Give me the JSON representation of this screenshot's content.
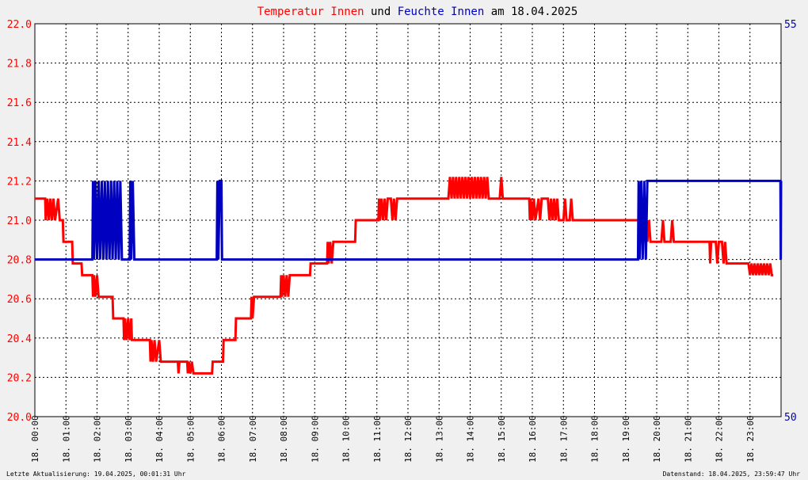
{
  "title": {
    "part1": "Temperatur Innen",
    "part2": " und ",
    "part3": "Feuchte Innen",
    "part4": " am 18.04.2025",
    "color1": "#ff0000",
    "color2": "#000000",
    "color3": "#0000c0"
  },
  "footer": {
    "left": "Letzte Aktualisierung: 19.04.2025, 00:01:31 Uhr",
    "right": "Datenstand: 18.04.2025, 23:59:47 Uhr"
  },
  "chart_data": {
    "type": "line",
    "title": "Temperatur Innen und Feuchte Innen am 18.04.2025",
    "x_range": [
      0,
      24
    ],
    "x_tick_labels": [
      "18. 00:00",
      "18. 01:00",
      "18. 02:00",
      "18. 03:00",
      "18. 04:00",
      "18. 05:00",
      "18. 06:00",
      "18. 07:00",
      "18. 08:00",
      "18. 09:00",
      "18. 10:00",
      "18. 11:00",
      "18. 12:00",
      "18. 13:00",
      "18. 14:00",
      "18. 15:00",
      "18. 16:00",
      "18. 17:00",
      "18. 18:00",
      "18. 19:00",
      "18. 20:00",
      "18. 21:00",
      "18. 22:00",
      "18. 23:00"
    ],
    "y_left": {
      "range": [
        20.0,
        22.0
      ],
      "ticks": [
        "20.0",
        "20.2",
        "20.4",
        "20.6",
        "20.8",
        "21.0",
        "21.2",
        "21.4",
        "21.6",
        "21.8",
        "22.0"
      ],
      "color": "#ff0000"
    },
    "y_right": {
      "range": [
        50,
        55
      ],
      "ticks": [
        "50",
        "55"
      ],
      "color": "#0000c0"
    },
    "grid": true,
    "series": [
      {
        "name": "Temperatur Innen",
        "axis": "left",
        "color": "#ff0000",
        "points": [
          [
            0.0,
            21.11
          ],
          [
            0.33,
            21.11
          ],
          [
            0.35,
            21.0
          ],
          [
            0.4,
            21.11
          ],
          [
            0.45,
            21.0
          ],
          [
            0.5,
            21.11
          ],
          [
            0.55,
            21.0
          ],
          [
            0.6,
            21.11
          ],
          [
            0.65,
            21.0
          ],
          [
            0.75,
            21.11
          ],
          [
            0.8,
            21.0
          ],
          [
            0.9,
            21.0
          ],
          [
            0.92,
            20.89
          ],
          [
            1.2,
            20.89
          ],
          [
            1.22,
            20.78
          ],
          [
            1.5,
            20.78
          ],
          [
            1.52,
            20.72
          ],
          [
            1.85,
            20.72
          ],
          [
            1.87,
            20.61
          ],
          [
            1.9,
            20.72
          ],
          [
            1.95,
            20.61
          ],
          [
            2.0,
            20.72
          ],
          [
            2.05,
            20.61
          ],
          [
            2.1,
            20.61
          ],
          [
            2.12,
            20.61
          ],
          [
            2.5,
            20.61
          ],
          [
            2.52,
            20.5
          ],
          [
            2.85,
            20.5
          ],
          [
            2.87,
            20.39
          ],
          [
            2.9,
            20.5
          ],
          [
            2.95,
            20.39
          ],
          [
            3.0,
            20.5
          ],
          [
            3.05,
            20.39
          ],
          [
            3.1,
            20.5
          ],
          [
            3.12,
            20.39
          ],
          [
            3.7,
            20.39
          ],
          [
            3.72,
            20.28
          ],
          [
            3.75,
            20.39
          ],
          [
            3.8,
            20.28
          ],
          [
            3.85,
            20.39
          ],
          [
            3.9,
            20.28
          ],
          [
            4.0,
            20.39
          ],
          [
            4.05,
            20.28
          ],
          [
            4.1,
            20.28
          ],
          [
            4.6,
            20.28
          ],
          [
            4.62,
            20.22
          ],
          [
            4.65,
            20.28
          ],
          [
            4.9,
            20.28
          ],
          [
            4.92,
            20.22
          ],
          [
            4.95,
            20.28
          ],
          [
            5.0,
            20.22
          ],
          [
            5.05,
            20.28
          ],
          [
            5.1,
            20.22
          ],
          [
            5.7,
            20.22
          ],
          [
            5.72,
            20.28
          ],
          [
            6.05,
            20.28
          ],
          [
            6.07,
            20.39
          ],
          [
            6.45,
            20.39
          ],
          [
            6.47,
            20.5
          ],
          [
            6.95,
            20.5
          ],
          [
            6.97,
            20.61
          ],
          [
            7.0,
            20.5
          ],
          [
            7.05,
            20.61
          ],
          [
            7.9,
            20.61
          ],
          [
            7.92,
            20.72
          ],
          [
            7.95,
            20.61
          ],
          [
            8.0,
            20.72
          ],
          [
            8.05,
            20.61
          ],
          [
            8.1,
            20.72
          ],
          [
            8.15,
            20.61
          ],
          [
            8.2,
            20.72
          ],
          [
            8.85,
            20.72
          ],
          [
            8.87,
            20.78
          ],
          [
            9.4,
            20.78
          ],
          [
            9.42,
            20.89
          ],
          [
            9.45,
            20.78
          ],
          [
            9.5,
            20.89
          ],
          [
            9.55,
            20.78
          ],
          [
            9.6,
            20.89
          ],
          [
            10.3,
            20.89
          ],
          [
            10.32,
            21.0
          ],
          [
            11.05,
            21.0
          ],
          [
            11.07,
            21.11
          ],
          [
            11.1,
            21.0
          ],
          [
            11.15,
            21.11
          ],
          [
            11.2,
            21.0
          ],
          [
            11.25,
            21.11
          ],
          [
            11.3,
            21.0
          ],
          [
            11.35,
            21.11
          ],
          [
            11.45,
            21.11
          ],
          [
            11.5,
            21.0
          ],
          [
            11.55,
            21.11
          ],
          [
            11.6,
            21.0
          ],
          [
            11.65,
            21.11
          ],
          [
            11.7,
            21.11
          ],
          [
            13.3,
            21.11
          ],
          [
            13.35,
            21.22
          ],
          [
            13.4,
            21.11
          ],
          [
            13.45,
            21.22
          ],
          [
            13.5,
            21.11
          ],
          [
            13.55,
            21.22
          ],
          [
            13.6,
            21.11
          ],
          [
            13.65,
            21.22
          ],
          [
            13.7,
            21.11
          ],
          [
            13.75,
            21.22
          ],
          [
            13.8,
            21.11
          ],
          [
            13.85,
            21.22
          ],
          [
            13.9,
            21.11
          ],
          [
            13.95,
            21.22
          ],
          [
            14.0,
            21.11
          ],
          [
            14.05,
            21.22
          ],
          [
            14.1,
            21.11
          ],
          [
            14.15,
            21.22
          ],
          [
            14.2,
            21.11
          ],
          [
            14.25,
            21.22
          ],
          [
            14.3,
            21.11
          ],
          [
            14.35,
            21.22
          ],
          [
            14.4,
            21.11
          ],
          [
            14.45,
            21.22
          ],
          [
            14.5,
            21.11
          ],
          [
            14.55,
            21.22
          ],
          [
            14.6,
            21.11
          ],
          [
            14.95,
            21.11
          ],
          [
            15.0,
            21.22
          ],
          [
            15.05,
            21.11
          ],
          [
            15.9,
            21.11
          ],
          [
            15.92,
            21.0
          ],
          [
            15.95,
            21.11
          ],
          [
            16.0,
            21.0
          ],
          [
            16.05,
            21.11
          ],
          [
            16.1,
            21.0
          ],
          [
            16.2,
            21.11
          ],
          [
            16.25,
            21.0
          ],
          [
            16.3,
            21.11
          ],
          [
            16.5,
            21.11
          ],
          [
            16.55,
            21.0
          ],
          [
            16.6,
            21.11
          ],
          [
            16.65,
            21.0
          ],
          [
            16.7,
            21.11
          ],
          [
            16.75,
            21.0
          ],
          [
            16.8,
            21.11
          ],
          [
            16.85,
            21.0
          ],
          [
            17.0,
            21.0
          ],
          [
            17.05,
            21.11
          ],
          [
            17.1,
            21.0
          ],
          [
            17.2,
            21.0
          ],
          [
            17.25,
            21.11
          ],
          [
            17.3,
            21.0
          ],
          [
            19.6,
            21.0
          ],
          [
            19.62,
            20.89
          ],
          [
            19.65,
            21.0
          ],
          [
            19.7,
            20.89
          ],
          [
            19.75,
            21.0
          ],
          [
            19.8,
            20.89
          ],
          [
            19.85,
            20.89
          ],
          [
            20.15,
            20.89
          ],
          [
            20.2,
            21.0
          ],
          [
            20.25,
            20.89
          ],
          [
            20.45,
            20.89
          ],
          [
            20.5,
            21.0
          ],
          [
            20.55,
            20.89
          ],
          [
            21.7,
            20.89
          ],
          [
            21.72,
            20.78
          ],
          [
            21.75,
            20.89
          ],
          [
            21.8,
            20.89
          ],
          [
            21.9,
            20.89
          ],
          [
            21.95,
            20.78
          ],
          [
            22.0,
            20.89
          ],
          [
            22.1,
            20.89
          ],
          [
            22.15,
            20.78
          ],
          [
            22.2,
            20.89
          ],
          [
            22.25,
            20.78
          ],
          [
            22.3,
            20.78
          ],
          [
            22.95,
            20.78
          ],
          [
            23.0,
            20.72
          ],
          [
            23.05,
            20.78
          ],
          [
            23.1,
            20.72
          ],
          [
            23.15,
            20.78
          ],
          [
            23.2,
            20.72
          ],
          [
            23.25,
            20.78
          ],
          [
            23.3,
            20.72
          ],
          [
            23.35,
            20.78
          ],
          [
            23.4,
            20.72
          ],
          [
            23.45,
            20.78
          ],
          [
            23.5,
            20.72
          ],
          [
            23.55,
            20.78
          ],
          [
            23.6,
            20.72
          ],
          [
            23.65,
            20.78
          ],
          [
            23.7,
            20.72
          ],
          [
            23.75,
            20.72
          ]
        ]
      },
      {
        "name": "Feuchte Innen",
        "axis": "right",
        "color": "#0000c0",
        "points": [
          [
            0.0,
            52.0
          ],
          [
            1.85,
            52.0
          ],
          [
            1.87,
            53.0
          ],
          [
            1.9,
            52.0
          ],
          [
            1.95,
            53.0
          ],
          [
            2.0,
            52.0
          ],
          [
            2.05,
            53.0
          ],
          [
            2.1,
            52.0
          ],
          [
            2.15,
            53.0
          ],
          [
            2.2,
            52.0
          ],
          [
            2.25,
            53.0
          ],
          [
            2.3,
            52.0
          ],
          [
            2.35,
            53.0
          ],
          [
            2.4,
            52.0
          ],
          [
            2.45,
            53.0
          ],
          [
            2.5,
            52.0
          ],
          [
            2.55,
            53.0
          ],
          [
            2.6,
            52.0
          ],
          [
            2.65,
            53.0
          ],
          [
            2.7,
            52.0
          ],
          [
            2.75,
            53.0
          ],
          [
            2.8,
            52.0
          ],
          [
            2.85,
            52.0
          ],
          [
            3.05,
            52.0
          ],
          [
            3.07,
            53.0
          ],
          [
            3.1,
            52.0
          ],
          [
            3.15,
            53.0
          ],
          [
            3.2,
            52.0
          ],
          [
            5.85,
            52.0
          ],
          [
            5.87,
            53.0
          ],
          [
            5.9,
            52.0
          ],
          [
            5.95,
            53.0
          ],
          [
            6.0,
            53.0
          ],
          [
            6.02,
            52.0
          ],
          [
            19.4,
            52.0
          ],
          [
            19.42,
            53.0
          ],
          [
            19.45,
            52.0
          ],
          [
            19.5,
            53.0
          ],
          [
            19.55,
            52.0
          ],
          [
            19.6,
            53.0
          ],
          [
            19.65,
            52.0
          ],
          [
            19.7,
            53.0
          ],
          [
            19.75,
            53.0
          ],
          [
            23.98,
            53.0
          ],
          [
            23.99,
            52.0
          ],
          [
            24.0,
            53.0
          ]
        ]
      }
    ]
  }
}
